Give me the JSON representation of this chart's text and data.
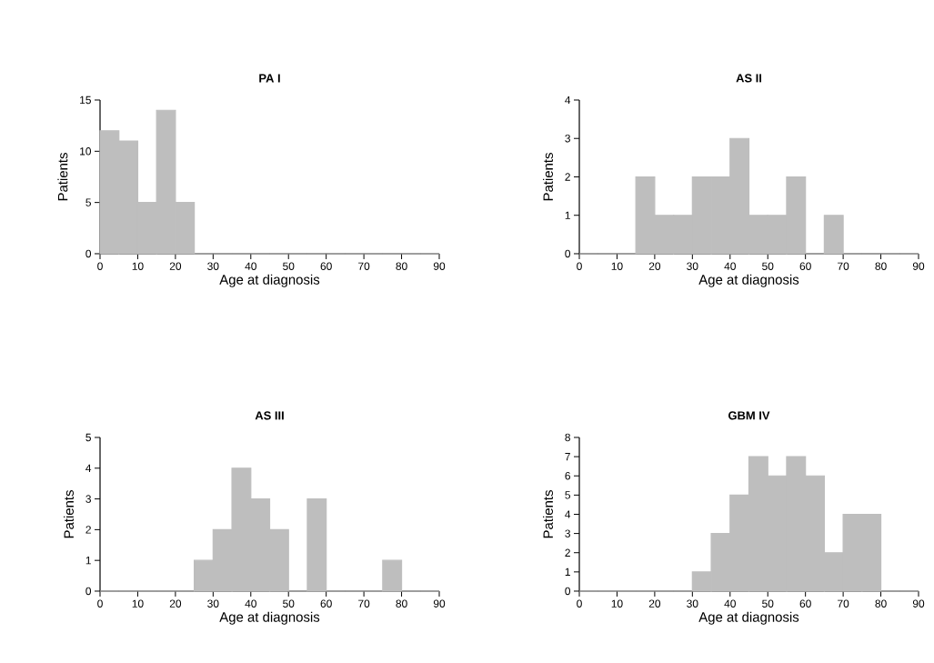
{
  "chart_data": [
    {
      "type": "histogram",
      "title": "PA I",
      "xlabel": "Age at diagnosis",
      "ylabel": "Patients",
      "color": "#bebebe",
      "bins": [
        0,
        5,
        10,
        15,
        20,
        25,
        30,
        35,
        40,
        45,
        50,
        55,
        60,
        65,
        70,
        75,
        80,
        85,
        90
      ],
      "values": [
        12,
        11,
        5,
        14,
        5,
        0,
        0,
        0,
        0,
        0,
        0,
        0,
        0,
        0,
        0,
        0,
        0,
        0
      ],
      "xlim": [
        0,
        90
      ],
      "ylim": [
        0,
        15
      ],
      "xticks": [
        0,
        10,
        20,
        30,
        40,
        50,
        60,
        70,
        80,
        90
      ],
      "yticks": [
        0,
        5,
        10,
        15
      ]
    },
    {
      "type": "histogram",
      "title": "AS II",
      "xlabel": "Age at diagnosis",
      "ylabel": "Patients",
      "color": "#bebebe",
      "bins": [
        0,
        5,
        10,
        15,
        20,
        25,
        30,
        35,
        40,
        45,
        50,
        55,
        60,
        65,
        70,
        75,
        80,
        85,
        90
      ],
      "values": [
        0,
        0,
        0,
        2,
        1,
        1,
        2,
        2,
        3,
        1,
        1,
        2,
        0,
        1,
        0,
        0,
        0,
        0
      ],
      "xlim": [
        0,
        90
      ],
      "ylim": [
        0,
        4
      ],
      "xticks": [
        0,
        10,
        20,
        30,
        40,
        50,
        60,
        70,
        80,
        90
      ],
      "yticks": [
        0,
        1,
        2,
        3,
        4
      ]
    },
    {
      "type": "histogram",
      "title": "AS III",
      "xlabel": "Age at diagnosis",
      "ylabel": "Patients",
      "color": "#bebebe",
      "bins": [
        0,
        5,
        10,
        15,
        20,
        25,
        30,
        35,
        40,
        45,
        50,
        55,
        60,
        65,
        70,
        75,
        80,
        85,
        90
      ],
      "values": [
        0,
        0,
        0,
        0,
        0,
        1,
        2,
        4,
        3,
        2,
        0,
        3,
        0,
        0,
        0,
        1,
        0,
        0
      ],
      "xlim": [
        0,
        90
      ],
      "ylim": [
        0,
        5
      ],
      "xticks": [
        0,
        10,
        20,
        30,
        40,
        50,
        60,
        70,
        80,
        90
      ],
      "yticks": [
        0,
        1,
        2,
        3,
        4,
        5
      ]
    },
    {
      "type": "histogram",
      "title": "GBM IV",
      "xlabel": "Age at diagnosis",
      "ylabel": "Patients",
      "color": "#bebebe",
      "bins": [
        0,
        5,
        10,
        15,
        20,
        25,
        30,
        35,
        40,
        45,
        50,
        55,
        60,
        65,
        70,
        75,
        80,
        85,
        90
      ],
      "values": [
        0,
        0,
        0,
        0,
        0,
        0,
        1,
        3,
        5,
        7,
        6,
        7,
        6,
        2,
        4,
        4,
        0,
        0
      ],
      "xlim": [
        0,
        90
      ],
      "ylim": [
        0,
        8
      ],
      "xticks": [
        0,
        10,
        20,
        30,
        40,
        50,
        60,
        70,
        80,
        90
      ],
      "yticks": [
        0,
        1,
        2,
        3,
        4,
        5,
        6,
        7,
        8
      ]
    }
  ]
}
